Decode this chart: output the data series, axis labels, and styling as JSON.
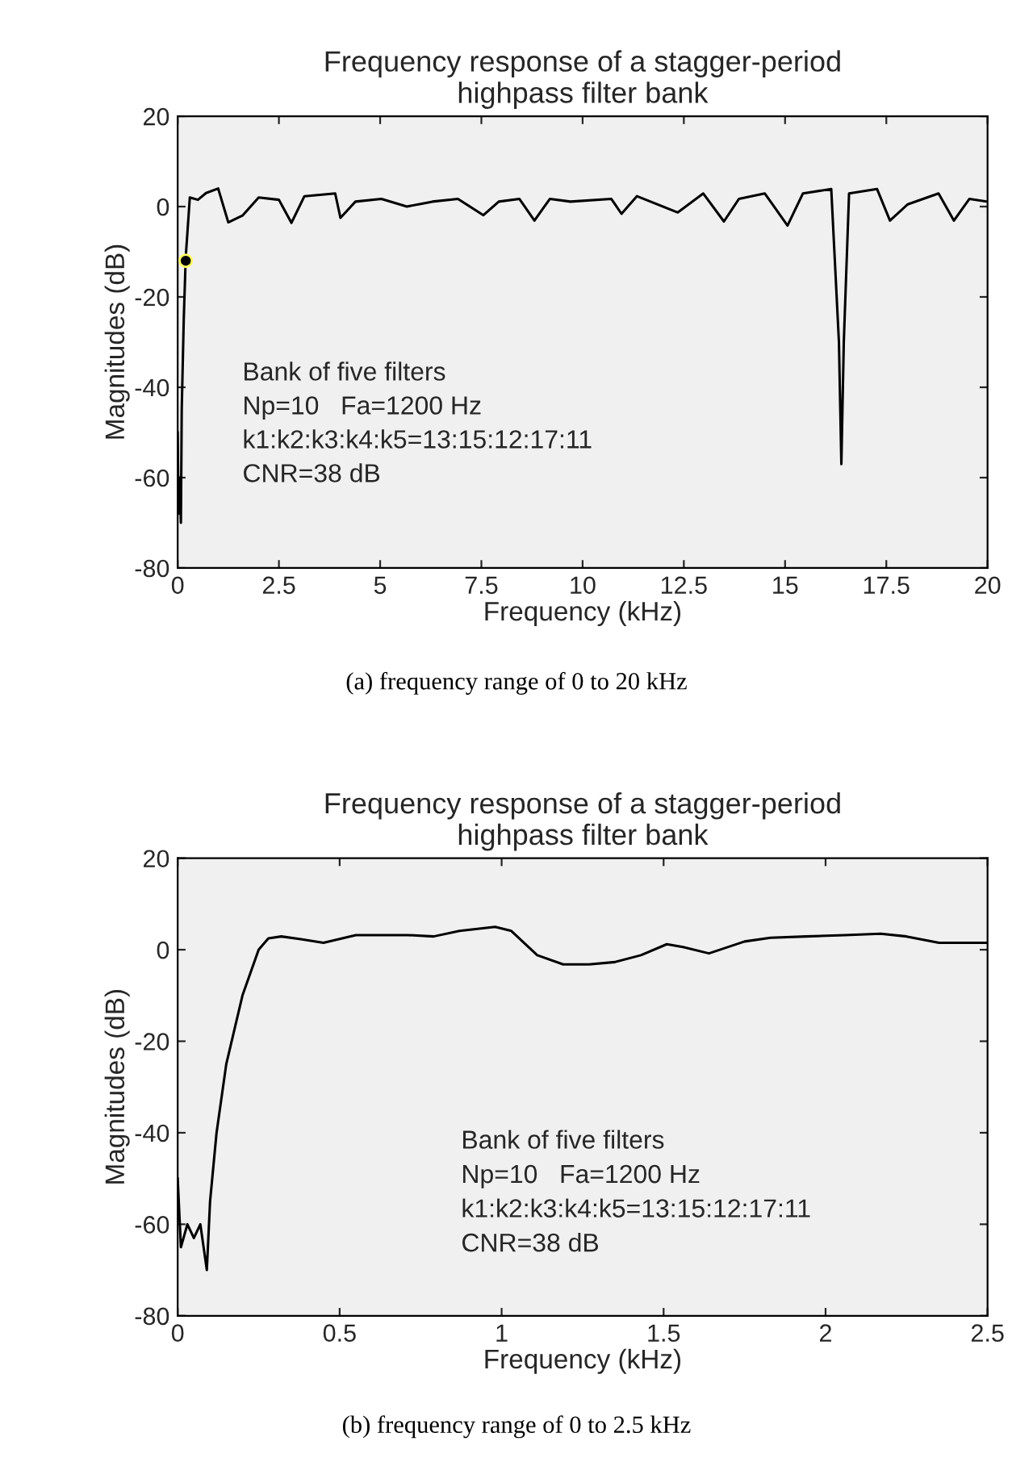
{
  "chart_data": [
    {
      "type": "line",
      "title": "Frequency response of a stagger-period\nhighpass filter bank",
      "xlabel": "Frequency (kHz)",
      "ylabel": "Magnitudes (dB)",
      "xlim": [
        0,
        20
      ],
      "ylim": [
        -80,
        20
      ],
      "xticks": [
        0,
        2.5,
        5,
        7.5,
        10,
        12.5,
        15,
        17.5,
        20
      ],
      "yticks": [
        -80,
        -60,
        -40,
        -20,
        0,
        20
      ],
      "grid": false,
      "legend": false,
      "series": [
        {
          "color": "#000000",
          "x": [
            0,
            0.02,
            0.05,
            0.08,
            0.1,
            0.15,
            0.2,
            0.3,
            0.5,
            0.7,
            1.0,
            1.25,
            1.6,
            2.0,
            2.5,
            2.81,
            3.13,
            3.89,
            4.02,
            4.39,
            5.03,
            5.66,
            6.29,
            6.92,
            7.55,
            7.93,
            8.44,
            8.81,
            9.19,
            9.7,
            10.71,
            10.96,
            11.34,
            12.35,
            12.98,
            13.49,
            13.86,
            14.5,
            15.06,
            15.44,
            16.14,
            16.33,
            16.39,
            16.45,
            16.58,
            17.27,
            17.59,
            18.03,
            18.79,
            19.17,
            19.55,
            20
          ],
          "values": [
            -50,
            -68,
            -60,
            -70,
            -45,
            -25,
            -11,
            2,
            1.5,
            3,
            4,
            -3.5,
            -2,
            2,
            1.5,
            -3.6,
            2.3,
            2.9,
            -2.5,
            1.1,
            1.7,
            0,
            1.1,
            1.7,
            -1.9,
            1.1,
            1.7,
            -3.1,
            1.7,
            1.1,
            1.7,
            -1.6,
            2.3,
            -1.3,
            2.9,
            -3.3,
            1.7,
            2.9,
            -4.2,
            2.9,
            3.9,
            -30,
            -57,
            -30,
            2.9,
            3.9,
            -3.1,
            0.5,
            2.9,
            -3.1,
            1.7,
            1.1
          ]
        },
        {
          "type": "scatter",
          "marker": "circle",
          "color": "#000000",
          "x": [
            0.2
          ],
          "values": [
            -12
          ]
        }
      ],
      "annotations": [
        "Bank of five filters",
        "Np=10   Fa=1200 Hz",
        "k1:k2:k3:k4:k5=13:15:12:17:11",
        "CNR=38 dB",
        "(a) frequency range of 0 to 20 kHz"
      ]
    },
    {
      "type": "line",
      "title": "Frequency response of a stagger-period\nhighpass filter bank",
      "xlabel": "Frequency (kHz)",
      "ylabel": "Magnitudes (dB)",
      "xlim": [
        0,
        2.5
      ],
      "ylim": [
        -80,
        20
      ],
      "xticks": [
        0,
        0.5,
        1,
        1.5,
        2,
        2.5
      ],
      "yticks": [
        -80,
        -60,
        -40,
        -20,
        0,
        20
      ],
      "grid": false,
      "legend": false,
      "series": [
        {
          "color": "#000000",
          "x": [
            0,
            0.01,
            0.03,
            0.05,
            0.07,
            0.09,
            0.1,
            0.12,
            0.15,
            0.2,
            0.25,
            0.28,
            0.32,
            0.38,
            0.45,
            0.55,
            0.71,
            0.79,
            0.87,
            0.98,
            1.03,
            1.11,
            1.19,
            1.27,
            1.35,
            1.43,
            1.51,
            1.56,
            1.64,
            1.75,
            1.83,
            1.94,
            2.06,
            2.17,
            2.25,
            2.35,
            2.5
          ],
          "values": [
            -50,
            -65,
            -60,
            -63,
            -60,
            -70,
            -55,
            -40,
            -25,
            -10,
            0,
            2.5,
            2.9,
            2.3,
            1.5,
            3.2,
            3.2,
            2.9,
            4.1,
            5.0,
            4.1,
            -1.2,
            -3.2,
            -3.2,
            -2.7,
            -1.2,
            1.2,
            0.6,
            -0.8,
            1.8,
            2.6,
            2.9,
            3.2,
            3.5,
            2.9,
            1.5,
            1.5
          ]
        }
      ],
      "annotations": [
        "Bank of five filters",
        "Np=10   Fa=1200 Hz",
        "k1:k2:k3:k4:k5=13:15:12:17:11",
        "CNR=38 dB",
        "(b) frequency range of 0 to 2.5 kHz"
      ]
    }
  ]
}
